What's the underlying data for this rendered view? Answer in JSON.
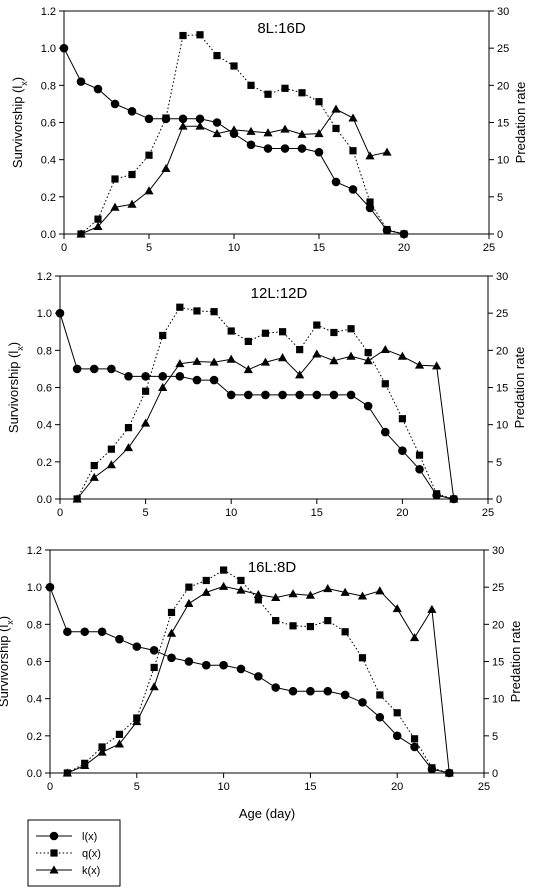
{
  "figure": {
    "xlabel": "Age (day)",
    "legend": [
      {
        "label": "l(x)",
        "marker": "circle",
        "line": "solid"
      },
      {
        "label": "q(x)",
        "marker": "square",
        "line": "dotted"
      },
      {
        "label": "k(x)",
        "marker": "triangle",
        "line": "solid"
      }
    ]
  },
  "chart_data": [
    {
      "type": "line",
      "title": "8L:16D",
      "xlabel": "",
      "ylabel": "Survivorship (lx)",
      "y2label": "Predation rate",
      "xlim": [
        0,
        25
      ],
      "ylim": [
        0,
        1.2
      ],
      "y2lim": [
        0,
        30
      ],
      "xticks": [
        0,
        5,
        10,
        15,
        20,
        25
      ],
      "yticks": [
        0.0,
        0.2,
        0.4,
        0.6,
        0.8,
        1.0,
        1.2
      ],
      "y2ticks": [
        0,
        5,
        10,
        15,
        20,
        25,
        30
      ],
      "grid": false,
      "series": [
        {
          "name": "l(x)",
          "axis": "left",
          "marker": "circle",
          "line": "solid",
          "x": [
            0,
            1,
            2,
            3,
            4,
            5,
            6,
            7,
            8,
            9,
            10,
            11,
            12,
            13,
            14,
            15,
            16,
            17,
            18,
            19,
            20
          ],
          "y": [
            1.0,
            0.82,
            0.78,
            0.7,
            0.66,
            0.62,
            0.62,
            0.62,
            0.62,
            0.6,
            0.54,
            0.48,
            0.46,
            0.46,
            0.46,
            0.44,
            0.28,
            0.24,
            0.14,
            0.02,
            0.0
          ]
        },
        {
          "name": "q(x)",
          "axis": "right",
          "marker": "square",
          "line": "dotted",
          "x": [
            1,
            2,
            3,
            4,
            5,
            6,
            7,
            8,
            9,
            10,
            11,
            12,
            13,
            14,
            15,
            16,
            17,
            18,
            19,
            20
          ],
          "y": [
            0.0,
            2.0,
            7.4,
            8.0,
            10.6,
            15.6,
            26.7,
            26.8,
            24.0,
            22.6,
            20.0,
            18.8,
            19.6,
            19.0,
            17.8,
            14.2,
            11.2,
            4.3,
            0.6,
            0.0
          ]
        },
        {
          "name": "k(x)",
          "axis": "right",
          "marker": "triangle",
          "line": "solid",
          "x": [
            1,
            2,
            3,
            4,
            5,
            6,
            7,
            8,
            9,
            10,
            11,
            12,
            13,
            14,
            15,
            16,
            17,
            18,
            19
          ],
          "y": [
            0.0,
            1.0,
            3.6,
            4.0,
            5.8,
            8.8,
            14.5,
            14.5,
            13.5,
            14.0,
            13.8,
            13.6,
            14.1,
            13.4,
            13.5,
            16.8,
            15.6,
            10.5,
            11.0
          ]
        }
      ]
    },
    {
      "type": "line",
      "title": "12L:12D",
      "xlabel": "",
      "ylabel": "Survivorship (lx)",
      "y2label": "Predation rate",
      "xlim": [
        0,
        25
      ],
      "ylim": [
        0,
        1.2
      ],
      "y2lim": [
        0,
        30
      ],
      "xticks": [
        0,
        5,
        10,
        15,
        20,
        25
      ],
      "yticks": [
        0.0,
        0.2,
        0.4,
        0.6,
        0.8,
        1.0,
        1.2
      ],
      "y2ticks": [
        0,
        5,
        10,
        15,
        20,
        25,
        30
      ],
      "grid": false,
      "series": [
        {
          "name": "l(x)",
          "axis": "left",
          "marker": "circle",
          "line": "solid",
          "x": [
            0,
            1,
            2,
            3,
            4,
            5,
            6,
            7,
            8,
            9,
            10,
            11,
            12,
            13,
            14,
            15,
            16,
            17,
            18,
            19,
            20,
            21,
            22,
            23
          ],
          "y": [
            1.0,
            0.7,
            0.7,
            0.7,
            0.66,
            0.66,
            0.66,
            0.66,
            0.64,
            0.64,
            0.56,
            0.56,
            0.56,
            0.56,
            0.56,
            0.56,
            0.56,
            0.56,
            0.5,
            0.36,
            0.26,
            0.16,
            0.02,
            0.0
          ]
        },
        {
          "name": "q(x)",
          "axis": "right",
          "marker": "square",
          "line": "dotted",
          "x": [
            1,
            2,
            3,
            4,
            5,
            6,
            7,
            8,
            9,
            10,
            11,
            12,
            13,
            14,
            15,
            16,
            17,
            18,
            19,
            20,
            21,
            22,
            23
          ],
          "y": [
            0.0,
            4.5,
            6.7,
            9.6,
            14.5,
            22.0,
            25.8,
            25.3,
            25.2,
            22.6,
            21.2,
            22.3,
            22.5,
            20.1,
            23.4,
            22.4,
            22.9,
            19.7,
            15.5,
            10.8,
            5.9,
            0.7,
            0.0
          ]
        },
        {
          "name": "k(x)",
          "axis": "right",
          "marker": "triangle",
          "line": "solid",
          "x": [
            1,
            2,
            3,
            4,
            5,
            6,
            7,
            8,
            9,
            10,
            11,
            12,
            13,
            14,
            15,
            16,
            17,
            18,
            19,
            20,
            21,
            22,
            23
          ],
          "y": [
            0.0,
            2.9,
            4.6,
            6.9,
            10.2,
            15.0,
            18.2,
            18.5,
            18.4,
            18.8,
            17.4,
            18.4,
            19.0,
            16.7,
            19.5,
            18.6,
            19.2,
            18.6,
            20.1,
            19.2,
            18.0,
            17.9,
            0.0
          ]
        }
      ]
    },
    {
      "type": "line",
      "title": "16L:8D",
      "xlabel": "Age (day)",
      "ylabel": "Survivorship (lx)",
      "y2label": "Predation rate",
      "xlim": [
        0,
        25
      ],
      "ylim": [
        0,
        1.2
      ],
      "y2lim": [
        0,
        30
      ],
      "xticks": [
        0,
        5,
        10,
        15,
        20,
        25
      ],
      "yticks": [
        0.0,
        0.2,
        0.4,
        0.6,
        0.8,
        1.0,
        1.2
      ],
      "y2ticks": [
        0,
        5,
        10,
        15,
        20,
        25,
        30
      ],
      "grid": false,
      "series": [
        {
          "name": "l(x)",
          "axis": "left",
          "marker": "circle",
          "line": "solid",
          "x": [
            0,
            1,
            2,
            3,
            4,
            5,
            6,
            7,
            8,
            9,
            10,
            11,
            12,
            13,
            14,
            15,
            16,
            17,
            18,
            19,
            20,
            21,
            22,
            23
          ],
          "y": [
            1.0,
            0.76,
            0.76,
            0.76,
            0.72,
            0.68,
            0.66,
            0.62,
            0.6,
            0.58,
            0.58,
            0.56,
            0.52,
            0.46,
            0.44,
            0.44,
            0.44,
            0.42,
            0.38,
            0.3,
            0.2,
            0.14,
            0.02,
            0.0
          ]
        },
        {
          "name": "q(x)",
          "axis": "right",
          "marker": "square",
          "line": "dotted",
          "x": [
            1,
            2,
            3,
            4,
            5,
            6,
            7,
            8,
            9,
            10,
            11,
            12,
            13,
            14,
            15,
            16,
            17,
            18,
            19,
            20,
            21,
            22,
            23
          ],
          "y": [
            0.0,
            1.3,
            3.5,
            5.2,
            7.4,
            14.2,
            21.6,
            25.0,
            25.9,
            27.3,
            25.9,
            23.3,
            20.5,
            19.8,
            19.7,
            20.5,
            19.0,
            15.5,
            10.5,
            8.1,
            4.6,
            0.7,
            0.0
          ]
        },
        {
          "name": "k(x)",
          "axis": "right",
          "marker": "triangle",
          "line": "solid",
          "x": [
            1,
            2,
            3,
            4,
            5,
            6,
            7,
            8,
            9,
            10,
            11,
            12,
            13,
            14,
            15,
            16,
            17,
            18,
            19,
            20,
            21,
            22,
            23
          ],
          "y": [
            0.0,
            1.0,
            2.8,
            3.9,
            6.9,
            11.6,
            18.8,
            22.8,
            24.3,
            25.1,
            24.6,
            24.0,
            23.6,
            24.1,
            23.9,
            24.8,
            24.3,
            23.8,
            24.5,
            22.1,
            18.2,
            22.0,
            0.0
          ]
        }
      ]
    }
  ]
}
